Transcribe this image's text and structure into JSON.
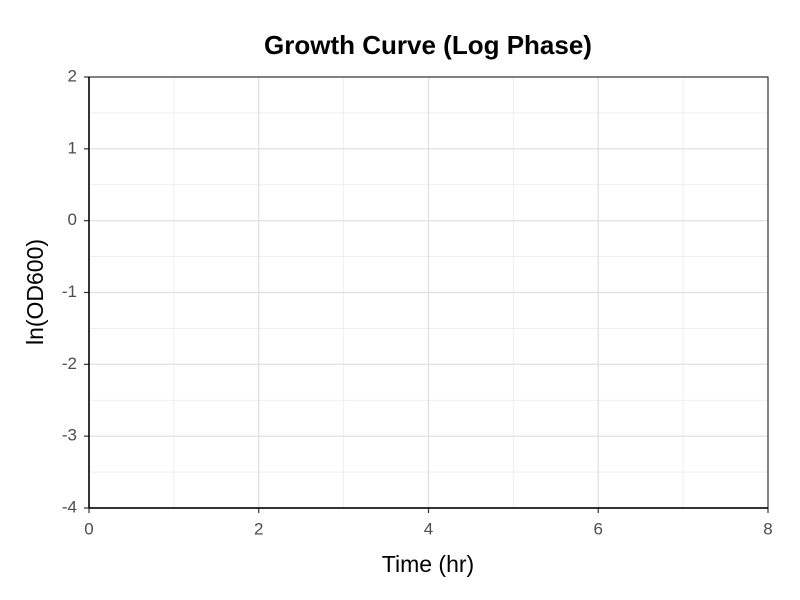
{
  "chart_data": {
    "type": "line",
    "title": "Growth Curve (Log Phase)",
    "xlabel": "Time (hr)",
    "ylabel": "ln(OD600)",
    "xlim": [
      0,
      8
    ],
    "ylim": [
      -4,
      2
    ],
    "xticks": [
      0,
      2,
      4,
      6,
      8
    ],
    "yticks": [
      -4,
      -3,
      -2,
      -1,
      0,
      1,
      2
    ],
    "grid": true,
    "series": []
  }
}
